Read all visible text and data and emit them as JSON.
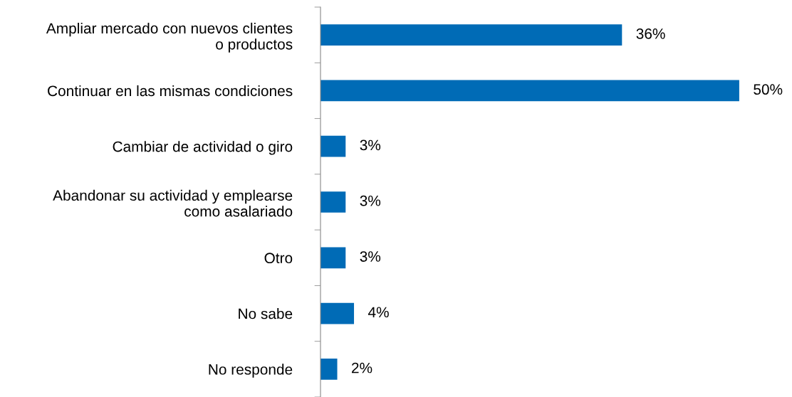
{
  "chart_data": {
    "type": "bar",
    "orientation": "horizontal",
    "categories": [
      "Ampliar mercado con nuevos clientes\no productos",
      "Continuar en las mismas condiciones",
      "Cambiar de actividad o giro",
      "Abandonar su actividad y emplearse\ncomo asalariado",
      "Otro",
      "No sabe",
      "No responde"
    ],
    "values": [
      36,
      50,
      3,
      3,
      3,
      4,
      2
    ],
    "value_labels": [
      "36%",
      "50%",
      "3%",
      "3%",
      "3%",
      "4%",
      "2%"
    ],
    "color": "#006bb6"
  }
}
